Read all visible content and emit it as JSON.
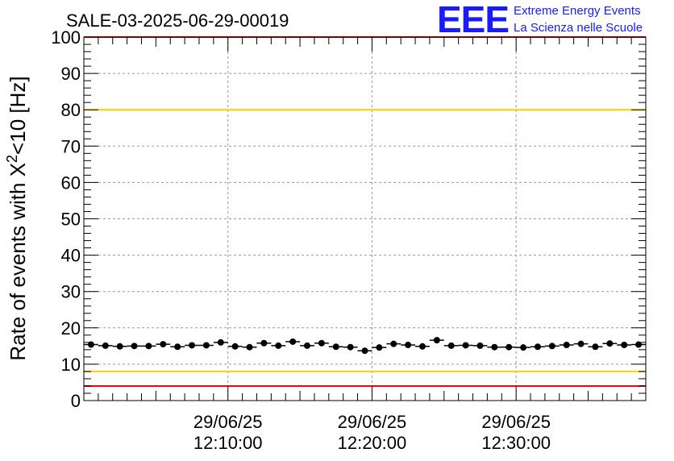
{
  "chart_data": {
    "type": "scatter",
    "title": "SALE-03-2025-06-29-00019",
    "logo": {
      "mark": "EEE",
      "line1": "Extreme Energy Events",
      "line2": "La Scienza nelle Scuole"
    },
    "ylabel_main": "Rate of events with X",
    "ylabel_sup": "2",
    "ylabel_tail": "<10 [Hz]",
    "ylim": [
      0,
      100
    ],
    "yticks": [
      "0",
      "10",
      "20",
      "30",
      "40",
      "50",
      "60",
      "70",
      "80",
      "90",
      "100"
    ],
    "xlim_minutes": [
      0,
      39
    ],
    "xticks": [
      {
        "at": 10,
        "date": "29/06/25",
        "time": "12:10:00"
      },
      {
        "at": 20,
        "date": "29/06/25",
        "time": "12:20:00"
      },
      {
        "at": 30,
        "date": "29/06/25",
        "time": "12:30:00"
      }
    ],
    "grid": true,
    "reference_lines": [
      {
        "y": 4,
        "color": "#ff0000"
      },
      {
        "y": 8,
        "color": "#ffcc00"
      },
      {
        "y": 80,
        "color": "#ffcc00"
      },
      {
        "y": 100,
        "color": "#ff0000"
      }
    ],
    "series": [
      {
        "color": "#000000",
        "x": [
          0.5,
          1.5,
          2.5,
          3.5,
          4.5,
          5.5,
          6.5,
          7.5,
          8.5,
          9.5,
          10.5,
          11.5,
          12.5,
          13.5,
          14.5,
          15.5,
          16.5,
          17.5,
          18.5,
          19.5,
          20.5,
          21.5,
          22.5,
          23.5,
          24.5,
          25.5,
          26.5,
          27.5,
          28.5,
          29.5,
          30.5,
          31.5,
          32.5,
          33.5,
          34.5,
          35.5,
          36.5,
          37.5,
          38.5
        ],
        "y": [
          15.4,
          15.1,
          14.9,
          15.0,
          15.0,
          15.5,
          14.8,
          15.2,
          15.2,
          16.0,
          14.9,
          14.7,
          15.8,
          15.1,
          16.2,
          15.1,
          15.8,
          14.8,
          14.7,
          13.7,
          14.6,
          15.6,
          15.3,
          14.9,
          16.6,
          15.1,
          15.2,
          15.1,
          14.7,
          14.7,
          14.6,
          14.8,
          15.0,
          15.3,
          15.6,
          14.8,
          15.7,
          15.3,
          15.4
        ]
      }
    ]
  }
}
